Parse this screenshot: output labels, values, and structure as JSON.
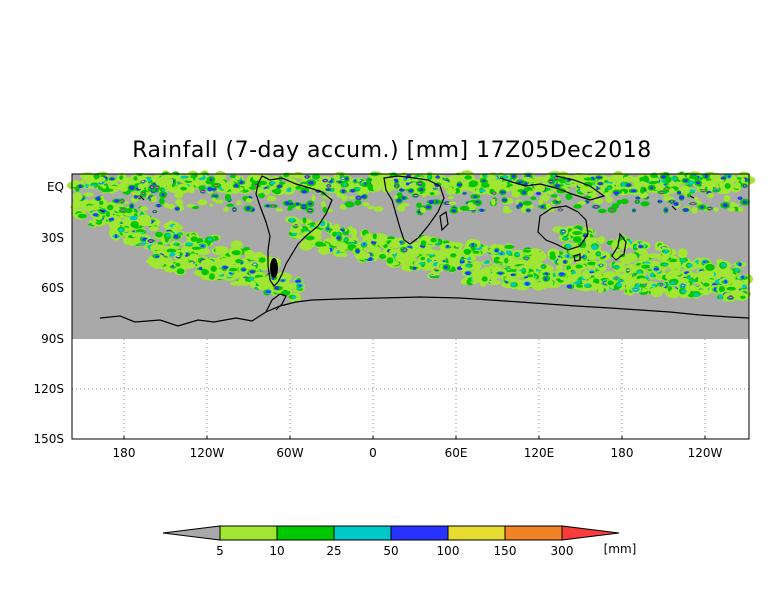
{
  "title": "Rainfall (7-day accum.) [mm] 17Z05Dec2018",
  "colors": {
    "no_rain": "#a9a9a9",
    "c5": "#a0e632",
    "c10": "#00c800",
    "c25": "#00c8c8",
    "c50": "#2832ff",
    "c100": "#e6dc32",
    "c150": "#f08228",
    "c300": "#fa3c3c",
    "coast": "#000000",
    "grid": "#888888"
  },
  "map": {
    "lat_labels": [
      "EQ",
      "30S",
      "60S",
      "90S",
      "120S",
      "150S"
    ],
    "lon_labels": [
      "180",
      "120W",
      "60W",
      "0",
      "60E",
      "120E",
      "180",
      "120W"
    ]
  },
  "legend": {
    "levels": [
      "5",
      "10",
      "25",
      "50",
      "100",
      "150",
      "300"
    ],
    "unit": "[mm]",
    "segment_colors": [
      "#a9a9a9",
      "#a0e632",
      "#00c800",
      "#00c8c8",
      "#2832ff",
      "#e6dc32",
      "#f08228",
      "#fa3c3c"
    ]
  }
}
